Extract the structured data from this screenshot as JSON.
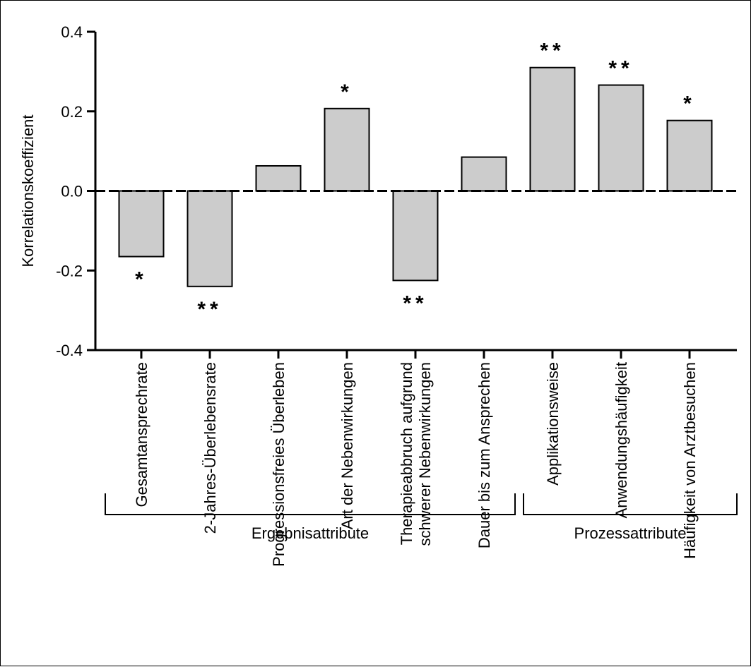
{
  "chart_data": {
    "type": "bar",
    "title": "",
    "xlabel": "",
    "ylabel": "Korrelationskoeffizient",
    "ylim": [
      -0.4,
      0.4
    ],
    "yticks": [
      "0.4",
      "0.2",
      "0.0",
      "-0.2",
      "-0.4"
    ],
    "ytick_values": [
      0.4,
      0.2,
      0.0,
      -0.2,
      -0.4
    ],
    "grid": false,
    "categories": [
      "Gesamtansprechrate",
      "2-Jahres-Überlebensrate",
      "Progressionsfreies Überleben",
      "Art der Nebenwirkungen",
      "Therapieabbruch aufgrund schwerer Nebenwirkungen",
      "Dauer bis zum Ansprechen",
      "Applikationsweise",
      "Anwendungshäufigkeit",
      "Häufigkeit von Arztbesuchen"
    ],
    "category_lines": [
      [
        "Gesamtansprechrate"
      ],
      [
        "2-Jahres-Überlebensrate"
      ],
      [
        "Progressionsfreies Überleben"
      ],
      [
        "Art der Nebenwirkungen"
      ],
      [
        "Therapieabbruch aufgrund",
        "schwerer Nebenwirkungen"
      ],
      [
        "Dauer bis zum Ansprechen"
      ],
      [
        "Applikationsweise"
      ],
      [
        "Anwendungshäufigkeit"
      ],
      [
        "Häufigkeit von Arztbesuchen"
      ]
    ],
    "values": [
      -0.165,
      -0.24,
      0.063,
      0.207,
      -0.225,
      0.085,
      0.31,
      0.266,
      0.177
    ],
    "significance": [
      "*",
      "**",
      "",
      "*",
      "**",
      "",
      "**",
      "**",
      "*"
    ],
    "groups": [
      {
        "label": "Ergebnisattribute",
        "from": 0,
        "to": 5
      },
      {
        "label": "Prozessattribute",
        "from": 6,
        "to": 8
      }
    ],
    "bar_color": "#cccccc",
    "bar_edge_color": "#000000",
    "reference_line": {
      "y": 0.0,
      "style": "dashed"
    }
  }
}
